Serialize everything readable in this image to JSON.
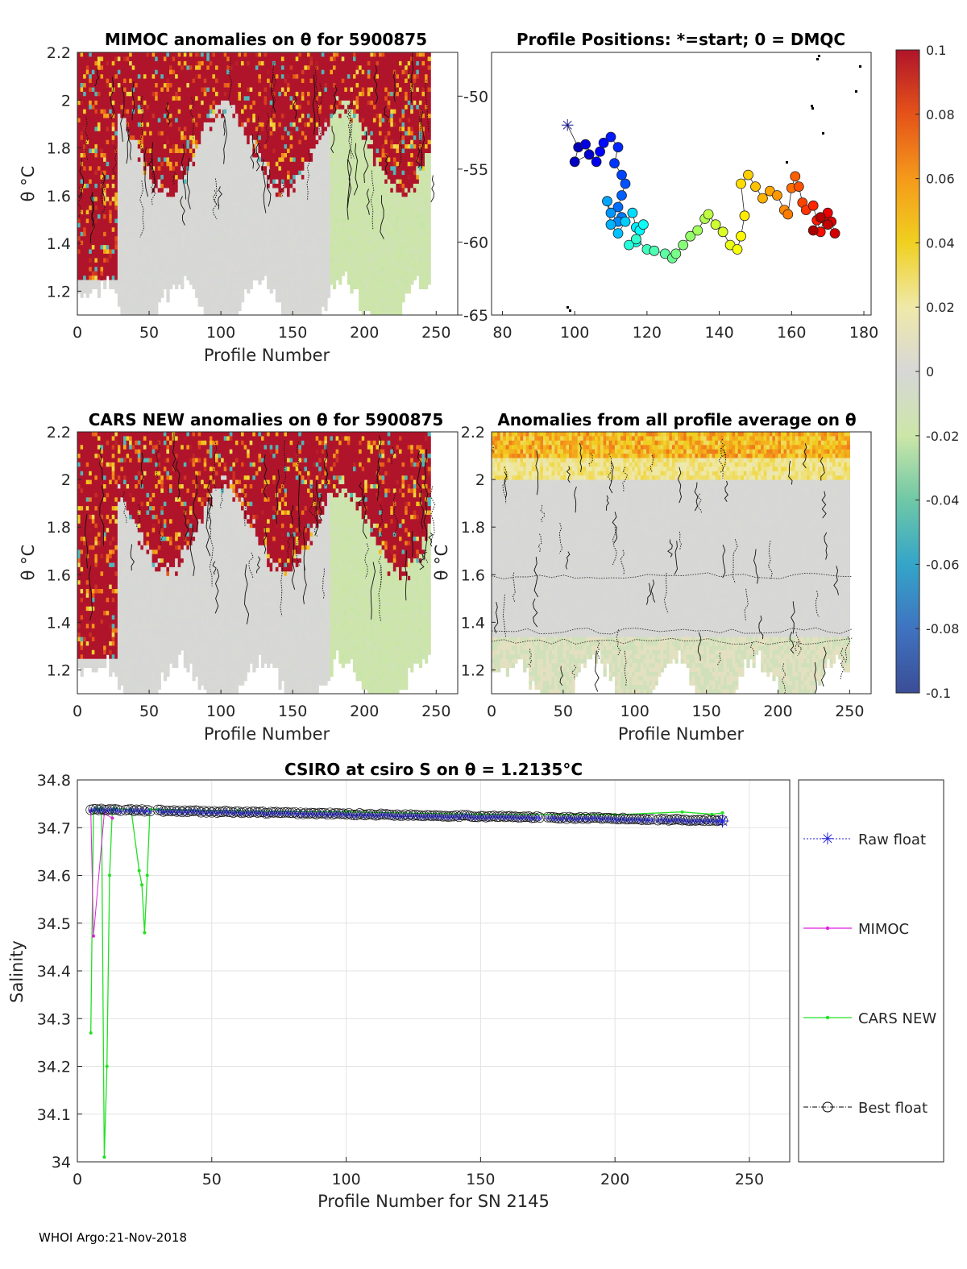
{
  "footer": "WHOI Argo:21-Nov-2018",
  "panels": {
    "mimoc": {
      "title": "MIMOC anomalies on θ  for 5900875",
      "xlabel": "Profile Number",
      "ylabel": "θ °C"
    },
    "positions": {
      "title": "Profile Positions: *=start; 0 = DMQC"
    },
    "cars": {
      "title": "CARS NEW anomalies on θ for 5900875",
      "xlabel": "Profile Number",
      "ylabel": "θ °C"
    },
    "avg": {
      "title": "Anomalies from all profile average on θ",
      "xlabel": "Profile Number",
      "ylabel": "θ °C"
    },
    "salinity": {
      "title": "CSIRO at csiro S on θ = 1.2135°C",
      "xlabel": "Profile Number for SN 2145",
      "ylabel": "Salinity"
    }
  },
  "colorbar": {
    "ticks": [
      "0.1",
      "0.08",
      "0.06",
      "0.04",
      "0.02",
      "0",
      "-0.02",
      "-0.04",
      "-0.06",
      "-0.08",
      "-0.1"
    ],
    "min": -0.1,
    "max": 0.1
  },
  "chart_data": [
    {
      "id": "mimoc",
      "type": "heatmap",
      "title": "MIMOC anomalies on θ  for 5900875",
      "xlabel": "Profile Number",
      "ylabel": "θ °C",
      "xlim": [
        0,
        265
      ],
      "ylim": [
        1.1,
        2.2
      ],
      "xticks": [
        "0",
        "50",
        "100",
        "150",
        "200",
        "250"
      ],
      "yticks": [
        "1.2",
        "1.4",
        "1.6",
        "1.8",
        "2",
        "2.2"
      ]
    },
    {
      "id": "positions",
      "type": "scatter",
      "title": "Profile Positions: *=start; 0 = DMQC",
      "xlim": [
        77,
        182
      ],
      "ylim": [
        -65,
        -47
      ],
      "xticks": [
        "80",
        "100",
        "120",
        "140",
        "160",
        "180"
      ],
      "yticks": [
        "-65",
        "-60",
        "-55",
        "-50"
      ],
      "track_lon": [
        98,
        101,
        100,
        104,
        103,
        106,
        107,
        108,
        110,
        112,
        111,
        113,
        114,
        113,
        112,
        113,
        112,
        110,
        109,
        110,
        112,
        114,
        116,
        117,
        118,
        119,
        117,
        115,
        117,
        120,
        122,
        125,
        127,
        128,
        130,
        132,
        134,
        136,
        137,
        139,
        141,
        143,
        145,
        146,
        147,
        146,
        148,
        150,
        152,
        154,
        156,
        158,
        159,
        160,
        161,
        162,
        163,
        164,
        166,
        167,
        168,
        169,
        170,
        171,
        172,
        170,
        168,
        166
      ],
      "track_lat": [
        -52,
        -53.5,
        -54.5,
        -54,
        -53.3,
        -54.5,
        -53.8,
        -53.2,
        -52.8,
        -53.5,
        -54.6,
        -55.4,
        -56,
        -56.8,
        -57.6,
        -58.3,
        -58.6,
        -58,
        -57.2,
        -58.8,
        -59.4,
        -58.6,
        -58,
        -59,
        -59.2,
        -58.8,
        -60,
        -60.2,
        -59.8,
        -60.5,
        -60.6,
        -60.8,
        -61.1,
        -60.8,
        -60.2,
        -59.6,
        -59.2,
        -58.4,
        -58.1,
        -58.8,
        -59.3,
        -60.2,
        -60.5,
        -59.6,
        -58.2,
        -56,
        -55.4,
        -56.2,
        -57,
        -56.5,
        -56.8,
        -57.8,
        -58.1,
        -56.3,
        -55.5,
        -56.2,
        -57.3,
        -57.8,
        -57.5,
        -58.5,
        -59.3,
        -58.4,
        -58,
        -58.6,
        -59.4,
        -58.8,
        -58.3,
        -59.2
      ]
    },
    {
      "id": "cars",
      "type": "heatmap",
      "title": "CARS NEW anomalies on θ for 5900875",
      "xlabel": "Profile Number",
      "ylabel": "θ °C",
      "xlim": [
        0,
        265
      ],
      "ylim": [
        1.1,
        2.2
      ],
      "xticks": [
        "0",
        "50",
        "100",
        "150",
        "200",
        "250"
      ],
      "yticks": [
        "1.2",
        "1.4",
        "1.6",
        "1.8",
        "2",
        "2.2"
      ]
    },
    {
      "id": "avg",
      "type": "heatmap",
      "title": "Anomalies from all profile average on θ",
      "xlabel": "Profile Number",
      "ylabel": "θ °C",
      "xlim": [
        0,
        265
      ],
      "ylim": [
        1.1,
        2.2
      ],
      "xticks": [
        "0",
        "50",
        "100",
        "150",
        "200",
        "250"
      ],
      "yticks": [
        "1.2",
        "1.4",
        "1.6",
        "1.8",
        "2",
        "2.2"
      ]
    },
    {
      "id": "salinity",
      "type": "line",
      "title": "CSIRO at csiro S on θ = 1.2135°C",
      "xlabel": "Profile Number for SN 2145",
      "ylabel": "Salinity",
      "xlim": [
        0,
        265
      ],
      "ylim": [
        34.0,
        34.8
      ],
      "xticks": [
        "0",
        "50",
        "100",
        "150",
        "200",
        "250"
      ],
      "yticks": [
        "34",
        "34.1",
        "34.2",
        "34.3",
        "34.4",
        "34.5",
        "34.6",
        "34.7",
        "34.8"
      ],
      "legend": [
        "Raw float",
        "MIMOC",
        "CARS NEW",
        "Best float"
      ],
      "series": [
        {
          "name": "Raw float",
          "start": 34.738,
          "end": 34.716,
          "from": 5,
          "to": 240
        },
        {
          "name": "MIMOC",
          "points": [
            [
              5,
              34.735
            ],
            [
              6,
              34.473
            ],
            [
              10,
              34.73
            ],
            [
              13,
              34.72
            ]
          ]
        },
        {
          "name": "CARS NEW",
          "points": [
            [
              5,
              34.27
            ],
            [
              6,
              34.735
            ],
            [
              7,
              34.74
            ],
            [
              8,
              34.738
            ],
            [
              9,
              34.74
            ],
            [
              10,
              34.01
            ],
            [
              11,
              34.2
            ],
            [
              12,
              34.6
            ],
            [
              13,
              34.737
            ],
            [
              14,
              34.74
            ],
            [
              20,
              34.738
            ],
            [
              23,
              34.61
            ],
            [
              24,
              34.58
            ],
            [
              25,
              34.48
            ],
            [
              26,
              34.6
            ],
            [
              27,
              34.738
            ],
            [
              30,
              34.738
            ],
            [
              60,
              34.735
            ],
            [
              100,
              34.733
            ],
            [
              150,
              34.728
            ],
            [
              200,
              34.727
            ],
            [
              225,
              34.733
            ],
            [
              236,
              34.728
            ],
            [
              240,
              34.731
            ]
          ]
        },
        {
          "name": "Best float",
          "start": 34.738,
          "end": 34.715,
          "from": 5,
          "to": 240
        }
      ]
    }
  ]
}
